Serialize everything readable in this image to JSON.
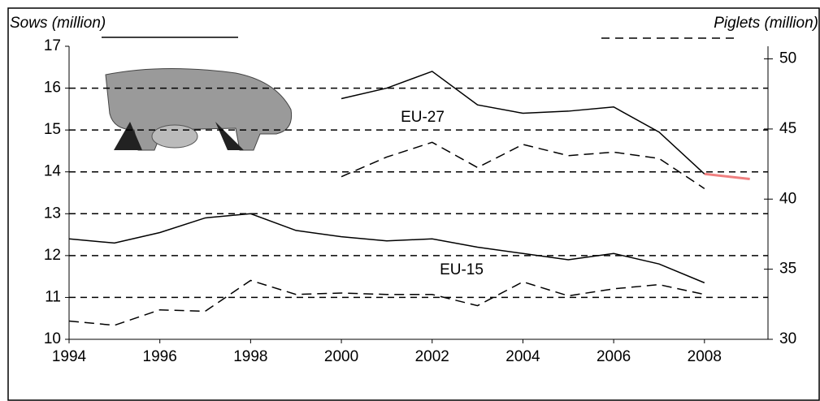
{
  "chart_data": {
    "type": "line",
    "y_label": "Sows (million)",
    "y2_label": "Piglets (million)",
    "annotations": [
      "EU-27",
      "EU-15"
    ],
    "x": [
      1994,
      1995,
      1996,
      1997,
      1998,
      1999,
      2000,
      2001,
      2002,
      2003,
      2004,
      2005,
      2006,
      2007,
      2008,
      2009
    ],
    "xlim": [
      1994,
      2009.4
    ],
    "xticks": [
      1994,
      1996,
      1998,
      2000,
      2002,
      2004,
      2006,
      2008
    ],
    "ylim": [
      10,
      17
    ],
    "yticks": [
      10,
      11,
      12,
      13,
      14,
      15,
      16,
      17
    ],
    "y2lim": [
      30,
      50.9
    ],
    "y2ticks": [
      30,
      35,
      40,
      45,
      50
    ],
    "grid": true,
    "series": [
      {
        "color": "#000000",
        "dash": false,
        "values": [
          null,
          null,
          null,
          null,
          null,
          null,
          15.75,
          16.0,
          16.4,
          15.6,
          15.4,
          15.45,
          15.55,
          14.95,
          13.95,
          null
        ]
      },
      {
        "color": "#f08080",
        "dash": false,
        "values": [
          null,
          null,
          null,
          null,
          null,
          null,
          null,
          null,
          null,
          null,
          null,
          null,
          null,
          null,
          13.95,
          13.83
        ]
      },
      {
        "color": "#000000",
        "dash": false,
        "values": [
          12.4,
          12.3,
          12.55,
          12.9,
          13.0,
          12.6,
          12.45,
          12.35,
          12.4,
          12.2,
          12.05,
          11.9,
          12.05,
          11.8,
          11.35,
          null
        ]
      },
      {
        "color": "#000000",
        "dash": true,
        "axis": "y2",
        "values": [
          null,
          null,
          null,
          null,
          null,
          null,
          41.6,
          43.0,
          44.05,
          42.25,
          43.9,
          43.1,
          43.35,
          42.9,
          40.75,
          null
        ]
      },
      {
        "color": "#000000",
        "dash": true,
        "axis": "y2",
        "values": [
          31.3,
          31.0,
          32.1,
          32.0,
          34.2,
          33.2,
          33.3,
          33.2,
          33.2,
          32.4,
          34.1,
          33.1,
          33.6,
          33.9,
          33.2,
          null
        ]
      }
    ]
  }
}
